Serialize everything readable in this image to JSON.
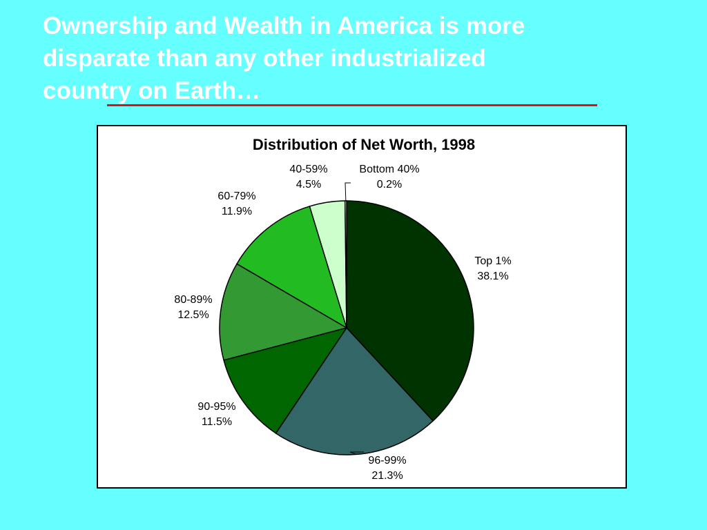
{
  "slide": {
    "title_lines": [
      "Ownership and Wealth in America is more",
      "disparate than any other industrialized",
      "country on Earth…"
    ],
    "underline_color": "#e01010"
  },
  "chart_data": {
    "type": "pie",
    "title": "Distribution of Net Worth, 1998",
    "unit": "%",
    "slices": [
      {
        "label": "Top 1%",
        "value": 38.1,
        "value_label": "38.1%",
        "color": "#003300"
      },
      {
        "label": "96-99%",
        "value": 21.3,
        "value_label": "21.3%",
        "color": "#336666"
      },
      {
        "label": "90-95%",
        "value": 11.5,
        "value_label": "11.5%",
        "color": "#006600"
      },
      {
        "label": "80-89%",
        "value": 12.5,
        "value_label": "12.5%",
        "color": "#339933"
      },
      {
        "label": "60-79%",
        "value": 11.9,
        "value_label": "11.9%",
        "color": "#22bb22"
      },
      {
        "label": "40-59%",
        "value": 4.5,
        "value_label": "4.5%",
        "color": "#ccffcc"
      },
      {
        "label": "Bottom 40%",
        "value": 0.2,
        "value_label": "0.2%",
        "color": "#ffffff"
      }
    ],
    "legend": "none"
  }
}
